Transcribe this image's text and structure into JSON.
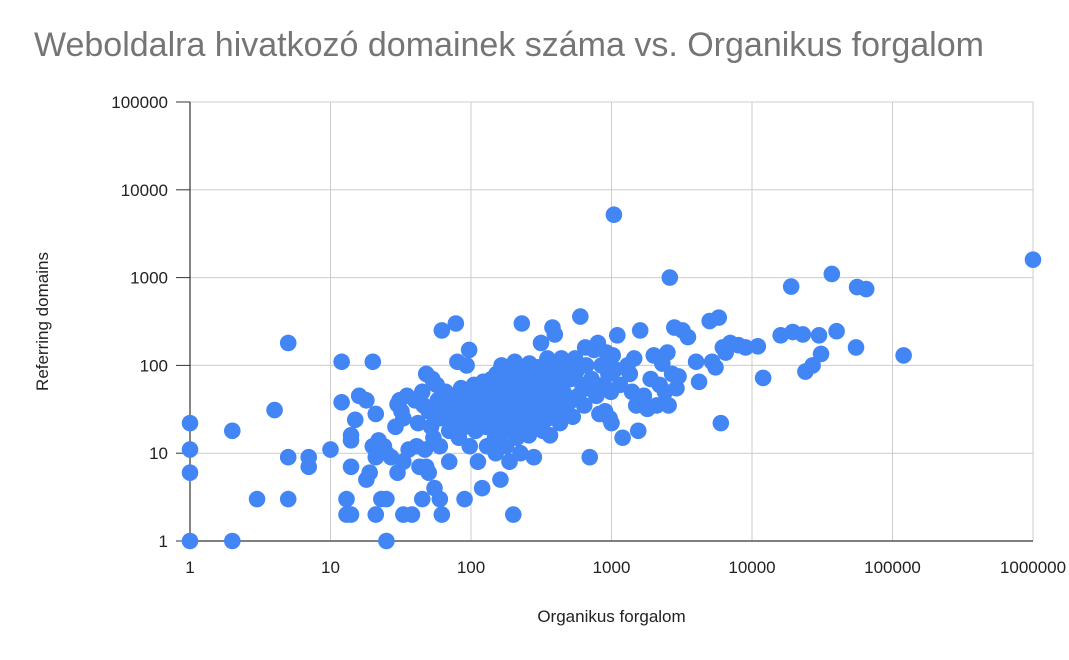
{
  "chart_data": {
    "type": "scatter",
    "title": "Weboldalra hivatkozó domainek száma vs. Organikus forgalom",
    "xlabel": "Organikus forgalom",
    "ylabel": "Referring domains",
    "x_scale": "log",
    "y_scale": "log",
    "xlim": [
      1,
      1000000
    ],
    "ylim": [
      1,
      100000
    ],
    "x_tick_labels": [
      "1",
      "10",
      "100",
      "1000",
      "10000",
      "100000",
      "1000000"
    ],
    "y_tick_labels": [
      "1",
      "10",
      "100",
      "1000",
      "10000",
      "100000"
    ],
    "grid": true,
    "legend": "none",
    "marker_color": "#4285f4",
    "series": [
      {
        "points": [
          [
            1,
            22
          ],
          [
            1,
            11
          ],
          [
            1,
            6
          ],
          [
            1,
            1
          ],
          [
            2,
            18
          ],
          [
            2,
            1
          ],
          [
            3,
            3
          ],
          [
            4,
            31
          ],
          [
            5,
            180
          ],
          [
            5,
            9
          ],
          [
            5,
            3
          ],
          [
            7,
            9
          ],
          [
            7,
            7
          ],
          [
            10,
            11
          ],
          [
            12,
            110
          ],
          [
            12,
            38
          ],
          [
            13,
            3
          ],
          [
            13,
            2
          ],
          [
            14,
            16
          ],
          [
            14,
            14
          ],
          [
            14,
            7
          ],
          [
            14,
            2
          ],
          [
            15,
            24
          ],
          [
            16,
            45
          ],
          [
            18,
            40
          ],
          [
            18,
            5
          ],
          [
            19,
            6
          ],
          [
            20,
            110
          ],
          [
            20,
            12
          ],
          [
            21,
            28
          ],
          [
            21,
            9
          ],
          [
            21,
            2
          ],
          [
            22,
            14
          ],
          [
            23,
            3
          ],
          [
            24,
            12
          ],
          [
            25,
            10
          ],
          [
            25,
            3
          ],
          [
            25,
            1
          ],
          [
            27,
            9
          ],
          [
            29,
            20
          ],
          [
            30,
            36
          ],
          [
            30,
            6
          ],
          [
            31,
            40
          ],
          [
            32,
            30
          ],
          [
            33,
            25
          ],
          [
            33,
            8
          ],
          [
            33,
            2
          ],
          [
            35,
            45
          ],
          [
            36,
            11
          ],
          [
            38,
            2
          ],
          [
            40,
            40
          ],
          [
            41,
            12
          ],
          [
            42,
            22
          ],
          [
            43,
            7
          ],
          [
            45,
            50
          ],
          [
            45,
            3
          ],
          [
            46,
            35
          ],
          [
            47,
            11
          ],
          [
            48,
            80
          ],
          [
            48,
            7
          ],
          [
            50,
            30
          ],
          [
            50,
            6
          ],
          [
            52,
            20
          ],
          [
            53,
            70
          ],
          [
            54,
            15
          ],
          [
            55,
            28
          ],
          [
            55,
            4
          ],
          [
            57,
            60
          ],
          [
            58,
            40
          ],
          [
            60,
            25
          ],
          [
            60,
            12
          ],
          [
            60,
            3
          ],
          [
            62,
            250
          ],
          [
            62,
            2
          ],
          [
            64,
            35
          ],
          [
            66,
            50
          ],
          [
            68,
            30
          ],
          [
            70,
            18
          ],
          [
            70,
            8
          ],
          [
            72,
            45
          ],
          [
            75,
            22
          ],
          [
            76,
            30
          ],
          [
            78,
            300
          ],
          [
            80,
            110
          ],
          [
            80,
            25
          ],
          [
            82,
            15
          ],
          [
            85,
            55
          ],
          [
            86,
            40
          ],
          [
            88,
            28
          ],
          [
            90,
            20
          ],
          [
            90,
            3
          ],
          [
            93,
            100
          ],
          [
            95,
            30
          ],
          [
            97,
            150
          ],
          [
            98,
            12
          ],
          [
            100,
            45
          ],
          [
            102,
            25
          ],
          [
            105,
            60
          ],
          [
            108,
            18
          ],
          [
            110,
            35
          ],
          [
            112,
            8
          ],
          [
            115,
            50
          ],
          [
            118,
            28
          ],
          [
            120,
            4
          ],
          [
            122,
            65
          ],
          [
            125,
            40
          ],
          [
            128,
            20
          ],
          [
            130,
            12
          ],
          [
            133,
            55
          ],
          [
            135,
            30
          ],
          [
            140,
            70
          ],
          [
            142,
            45
          ],
          [
            145,
            25
          ],
          [
            148,
            15
          ],
          [
            150,
            10
          ],
          [
            152,
            80
          ],
          [
            155,
            35
          ],
          [
            158,
            60
          ],
          [
            160,
            22
          ],
          [
            162,
            5
          ],
          [
            165,
            100
          ],
          [
            168,
            45
          ],
          [
            170,
            30
          ],
          [
            172,
            18
          ],
          [
            175,
            75
          ],
          [
            178,
            12
          ],
          [
            180,
            55
          ],
          [
            182,
            40
          ],
          [
            185,
            25
          ],
          [
            188,
            8
          ],
          [
            190,
            90
          ],
          [
            192,
            60
          ],
          [
            195,
            35
          ],
          [
            198,
            20
          ],
          [
            200,
            2
          ],
          [
            205,
            110
          ],
          [
            208,
            50
          ],
          [
            210,
            30
          ],
          [
            212,
            15
          ],
          [
            215,
            70
          ],
          [
            218,
            42
          ],
          [
            220,
            25
          ],
          [
            225,
            10
          ],
          [
            230,
            300
          ],
          [
            232,
            85
          ],
          [
            235,
            55
          ],
          [
            238,
            38
          ],
          [
            240,
            20
          ],
          [
            245,
            65
          ],
          [
            250,
            45
          ],
          [
            255,
            28
          ],
          [
            258,
            16
          ],
          [
            260,
            105
          ],
          [
            265,
            75
          ],
          [
            270,
            50
          ],
          [
            275,
            30
          ],
          [
            280,
            9
          ],
          [
            285,
            60
          ],
          [
            290,
            40
          ],
          [
            295,
            22
          ],
          [
            300,
            95
          ],
          [
            305,
            70
          ],
          [
            310,
            45
          ],
          [
            315,
            180
          ],
          [
            320,
            30
          ],
          [
            325,
            18
          ],
          [
            330,
            80
          ],
          [
            340,
            55
          ],
          [
            345,
            35
          ],
          [
            350,
            120
          ],
          [
            355,
            25
          ],
          [
            360,
            65
          ],
          [
            365,
            16
          ],
          [
            370,
            45
          ],
          [
            380,
            270
          ],
          [
            385,
            100
          ],
          [
            390,
            30
          ],
          [
            395,
            225
          ],
          [
            400,
            55
          ],
          [
            410,
            75
          ],
          [
            420,
            38
          ],
          [
            430,
            22
          ],
          [
            440,
            120
          ],
          [
            450,
            60
          ],
          [
            460,
            48
          ],
          [
            470,
            90
          ],
          [
            480,
            30
          ],
          [
            500,
            110
          ],
          [
            510,
            70
          ],
          [
            520,
            40
          ],
          [
            530,
            26
          ],
          [
            550,
            120
          ],
          [
            560,
            85
          ],
          [
            580,
            45
          ],
          [
            600,
            360
          ],
          [
            620,
            60
          ],
          [
            640,
            35
          ],
          [
            650,
            160
          ],
          [
            660,
            100
          ],
          [
            680,
            55
          ],
          [
            700,
            9
          ],
          [
            720,
            70
          ],
          [
            750,
            150
          ],
          [
            780,
            45
          ],
          [
            800,
            180
          ],
          [
            820,
            28
          ],
          [
            850,
            100
          ],
          [
            880,
            60
          ],
          [
            900,
            30
          ],
          [
            920,
            140
          ],
          [
            950,
            80
          ],
          [
            970,
            25
          ],
          [
            990,
            50
          ],
          [
            1000,
            22
          ],
          [
            1020,
            130
          ],
          [
            1040,
            5200
          ],
          [
            1060,
            90
          ],
          [
            1100,
            220
          ],
          [
            1150,
            60
          ],
          [
            1200,
            15
          ],
          [
            1300,
            100
          ],
          [
            1350,
            80
          ],
          [
            1400,
            50
          ],
          [
            1450,
            120
          ],
          [
            1500,
            35
          ],
          [
            1550,
            18
          ],
          [
            1600,
            250
          ],
          [
            1700,
            45
          ],
          [
            1800,
            32
          ],
          [
            1900,
            70
          ],
          [
            2000,
            130
          ],
          [
            2100,
            35
          ],
          [
            2200,
            60
          ],
          [
            2300,
            105
          ],
          [
            2400,
            50
          ],
          [
            2500,
            140
          ],
          [
            2550,
            35
          ],
          [
            2600,
            1000
          ],
          [
            2700,
            80
          ],
          [
            2800,
            270
          ],
          [
            2900,
            55
          ],
          [
            3000,
            75
          ],
          [
            3200,
            250
          ],
          [
            3500,
            210
          ],
          [
            4000,
            110
          ],
          [
            4200,
            65
          ],
          [
            5000,
            320
          ],
          [
            5200,
            110
          ],
          [
            5500,
            95
          ],
          [
            5800,
            350
          ],
          [
            6000,
            22
          ],
          [
            6200,
            160
          ],
          [
            6500,
            140
          ],
          [
            7000,
            180
          ],
          [
            8000,
            170
          ],
          [
            9000,
            160
          ],
          [
            11000,
            165
          ],
          [
            12000,
            72
          ],
          [
            16000,
            220
          ],
          [
            19000,
            790
          ],
          [
            19500,
            240
          ],
          [
            23000,
            225
          ],
          [
            24000,
            85
          ],
          [
            27000,
            100
          ],
          [
            30000,
            220
          ],
          [
            31000,
            135
          ],
          [
            37000,
            1100
          ],
          [
            40000,
            245
          ],
          [
            55000,
            160
          ],
          [
            56000,
            780
          ],
          [
            65000,
            740
          ],
          [
            120000,
            130
          ],
          [
            1000000,
            1600
          ]
        ]
      }
    ]
  }
}
